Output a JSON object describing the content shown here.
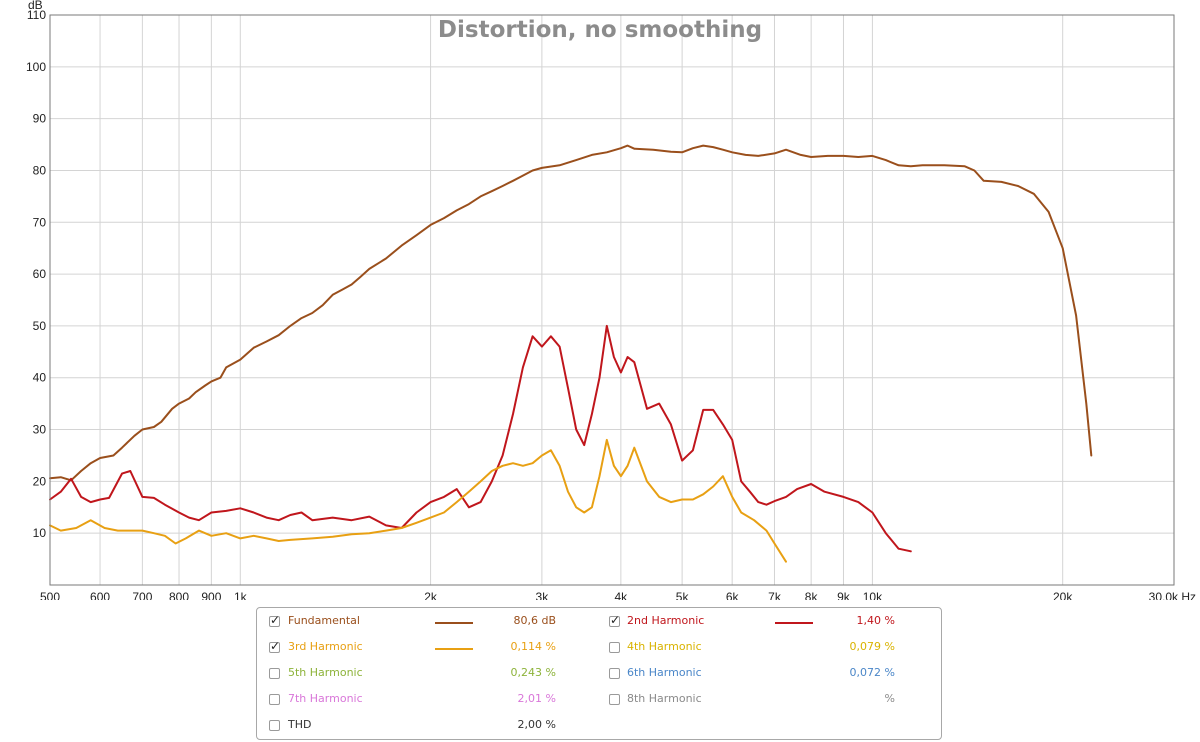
{
  "chart_data": {
    "type": "line",
    "title": "Distortion, no smoothing",
    "ylabel": "dB",
    "xunit": "Hz",
    "xscale": "log",
    "xlim": [
      500,
      30000
    ],
    "ylim": [
      0,
      110
    ],
    "grid": true,
    "x_ticks": [
      {
        "v": 500,
        "label": "500"
      },
      {
        "v": 600,
        "label": "600"
      },
      {
        "v": 700,
        "label": "700"
      },
      {
        "v": 800,
        "label": "800"
      },
      {
        "v": 900,
        "label": "900"
      },
      {
        "v": 1000,
        "label": "1k"
      },
      {
        "v": 2000,
        "label": "2k"
      },
      {
        "v": 3000,
        "label": "3k"
      },
      {
        "v": 4000,
        "label": "4k"
      },
      {
        "v": 5000,
        "label": "5k"
      },
      {
        "v": 6000,
        "label": "6k"
      },
      {
        "v": 7000,
        "label": "7k"
      },
      {
        "v": 8000,
        "label": "8k"
      },
      {
        "v": 9000,
        "label": "9k"
      },
      {
        "v": 10000,
        "label": "10k"
      },
      {
        "v": 20000,
        "label": "20k"
      },
      {
        "v": 30000,
        "label": "30,0k Hz"
      }
    ],
    "y_ticks": [
      {
        "v": 10,
        "label": "10"
      },
      {
        "v": 20,
        "label": "20"
      },
      {
        "v": 30,
        "label": "30"
      },
      {
        "v": 40,
        "label": "40"
      },
      {
        "v": 50,
        "label": "50"
      },
      {
        "v": 60,
        "label": "60"
      },
      {
        "v": 70,
        "label": "70"
      },
      {
        "v": 80,
        "label": "80"
      },
      {
        "v": 90,
        "label": "90"
      },
      {
        "v": 100,
        "label": "100"
      },
      {
        "v": 110,
        "label": "110"
      }
    ],
    "series": [
      {
        "name": "Fundamental",
        "color": "#9a4f1c",
        "points": [
          [
            500,
            20.6
          ],
          [
            520,
            20.8
          ],
          [
            540,
            20.2
          ],
          [
            560,
            22
          ],
          [
            580,
            23.5
          ],
          [
            600,
            24.5
          ],
          [
            630,
            25
          ],
          [
            650,
            26.5
          ],
          [
            680,
            28.8
          ],
          [
            700,
            30
          ],
          [
            730,
            30.5
          ],
          [
            750,
            31.5
          ],
          [
            780,
            34
          ],
          [
            800,
            35
          ],
          [
            830,
            36
          ],
          [
            850,
            37.2
          ],
          [
            880,
            38.5
          ],
          [
            900,
            39.3
          ],
          [
            930,
            40
          ],
          [
            950,
            42
          ],
          [
            1000,
            43.5
          ],
          [
            1050,
            45.8
          ],
          [
            1100,
            47
          ],
          [
            1150,
            48.2
          ],
          [
            1200,
            50
          ],
          [
            1250,
            51.5
          ],
          [
            1300,
            52.5
          ],
          [
            1350,
            54
          ],
          [
            1400,
            56
          ],
          [
            1450,
            57
          ],
          [
            1500,
            58
          ],
          [
            1550,
            59.5
          ],
          [
            1600,
            61
          ],
          [
            1700,
            63
          ],
          [
            1800,
            65.5
          ],
          [
            1900,
            67.5
          ],
          [
            2000,
            69.5
          ],
          [
            2100,
            70.8
          ],
          [
            2200,
            72.3
          ],
          [
            2300,
            73.5
          ],
          [
            2400,
            75
          ],
          [
            2500,
            76
          ],
          [
            2600,
            77
          ],
          [
            2700,
            78
          ],
          [
            2800,
            79
          ],
          [
            2900,
            80
          ],
          [
            3000,
            80.5
          ],
          [
            3200,
            81
          ],
          [
            3400,
            82
          ],
          [
            3600,
            83
          ],
          [
            3800,
            83.5
          ],
          [
            4000,
            84.3
          ],
          [
            4100,
            84.8
          ],
          [
            4200,
            84.2
          ],
          [
            4500,
            84
          ],
          [
            4800,
            83.6
          ],
          [
            5000,
            83.5
          ],
          [
            5200,
            84.3
          ],
          [
            5400,
            84.8
          ],
          [
            5600,
            84.5
          ],
          [
            5800,
            84
          ],
          [
            6000,
            83.5
          ],
          [
            6300,
            83
          ],
          [
            6600,
            82.8
          ],
          [
            7000,
            83.3
          ],
          [
            7300,
            84
          ],
          [
            7700,
            83
          ],
          [
            8000,
            82.6
          ],
          [
            8500,
            82.8
          ],
          [
            9000,
            82.8
          ],
          [
            9500,
            82.6
          ],
          [
            10000,
            82.8
          ],
          [
            10500,
            82
          ],
          [
            11000,
            81
          ],
          [
            11500,
            80.8
          ],
          [
            12000,
            81
          ],
          [
            13000,
            81
          ],
          [
            14000,
            80.8
          ],
          [
            14500,
            80
          ],
          [
            15000,
            78
          ],
          [
            16000,
            77.8
          ],
          [
            17000,
            77
          ],
          [
            18000,
            75.5
          ],
          [
            19000,
            72
          ],
          [
            20000,
            65
          ],
          [
            21000,
            52
          ],
          [
            21800,
            35
          ],
          [
            22200,
            25
          ]
        ]
      },
      {
        "name": "2nd Harmonic",
        "color": "#c0161c",
        "points": [
          [
            500,
            16.5
          ],
          [
            520,
            18
          ],
          [
            540,
            20.5
          ],
          [
            560,
            17
          ],
          [
            580,
            16
          ],
          [
            600,
            16.5
          ],
          [
            620,
            16.8
          ],
          [
            650,
            21.5
          ],
          [
            670,
            22
          ],
          [
            700,
            17
          ],
          [
            730,
            16.8
          ],
          [
            760,
            15.5
          ],
          [
            800,
            14
          ],
          [
            830,
            13
          ],
          [
            860,
            12.5
          ],
          [
            900,
            14
          ],
          [
            950,
            14.3
          ],
          [
            1000,
            14.8
          ],
          [
            1050,
            14
          ],
          [
            1100,
            13
          ],
          [
            1150,
            12.5
          ],
          [
            1200,
            13.5
          ],
          [
            1250,
            14
          ],
          [
            1300,
            12.5
          ],
          [
            1400,
            13
          ],
          [
            1500,
            12.5
          ],
          [
            1600,
            13.2
          ],
          [
            1700,
            11.5
          ],
          [
            1800,
            11
          ],
          [
            1900,
            14
          ],
          [
            2000,
            16
          ],
          [
            2100,
            17
          ],
          [
            2200,
            18.5
          ],
          [
            2300,
            15
          ],
          [
            2400,
            16
          ],
          [
            2500,
            20
          ],
          [
            2600,
            25
          ],
          [
            2700,
            33
          ],
          [
            2800,
            42
          ],
          [
            2900,
            48
          ],
          [
            3000,
            46
          ],
          [
            3100,
            48
          ],
          [
            3200,
            46
          ],
          [
            3300,
            38
          ],
          [
            3400,
            30
          ],
          [
            3500,
            27
          ],
          [
            3600,
            33
          ],
          [
            3700,
            40
          ],
          [
            3800,
            50
          ],
          [
            3900,
            44
          ],
          [
            4000,
            41
          ],
          [
            4100,
            44
          ],
          [
            4200,
            43
          ],
          [
            4400,
            34
          ],
          [
            4600,
            35
          ],
          [
            4800,
            31
          ],
          [
            5000,
            24
          ],
          [
            5200,
            26
          ],
          [
            5400,
            33.8
          ],
          [
            5600,
            33.8
          ],
          [
            5800,
            31
          ],
          [
            6000,
            28
          ],
          [
            6200,
            20
          ],
          [
            6400,
            18
          ],
          [
            6600,
            16
          ],
          [
            6800,
            15.5
          ],
          [
            7000,
            16.2
          ],
          [
            7300,
            17
          ],
          [
            7600,
            18.5
          ],
          [
            8000,
            19.5
          ],
          [
            8400,
            18
          ],
          [
            9000,
            17
          ],
          [
            9500,
            16
          ],
          [
            10000,
            14
          ],
          [
            10500,
            10
          ],
          [
            11000,
            7
          ],
          [
            11500,
            6.5
          ]
        ]
      },
      {
        "name": "3rd Harmonic",
        "color": "#e8a013",
        "points": [
          [
            500,
            11.5
          ],
          [
            520,
            10.5
          ],
          [
            550,
            11
          ],
          [
            580,
            12.5
          ],
          [
            610,
            11
          ],
          [
            640,
            10.5
          ],
          [
            670,
            10.5
          ],
          [
            700,
            10.5
          ],
          [
            730,
            10
          ],
          [
            760,
            9.5
          ],
          [
            790,
            8
          ],
          [
            820,
            9
          ],
          [
            860,
            10.5
          ],
          [
            900,
            9.5
          ],
          [
            950,
            10
          ],
          [
            1000,
            9
          ],
          [
            1050,
            9.5
          ],
          [
            1100,
            9
          ],
          [
            1150,
            8.5
          ],
          [
            1200,
            8.7
          ],
          [
            1300,
            9
          ],
          [
            1400,
            9.3
          ],
          [
            1500,
            9.8
          ],
          [
            1600,
            10
          ],
          [
            1700,
            10.5
          ],
          [
            1800,
            11
          ],
          [
            1900,
            12
          ],
          [
            2000,
            13
          ],
          [
            2100,
            14
          ],
          [
            2200,
            16
          ],
          [
            2300,
            18
          ],
          [
            2400,
            20
          ],
          [
            2500,
            22
          ],
          [
            2600,
            23
          ],
          [
            2700,
            23.5
          ],
          [
            2800,
            23
          ],
          [
            2900,
            23.5
          ],
          [
            3000,
            25
          ],
          [
            3100,
            26
          ],
          [
            3200,
            23
          ],
          [
            3300,
            18
          ],
          [
            3400,
            15
          ],
          [
            3500,
            14
          ],
          [
            3600,
            15
          ],
          [
            3700,
            21
          ],
          [
            3800,
            28
          ],
          [
            3900,
            23
          ],
          [
            4000,
            21
          ],
          [
            4100,
            23
          ],
          [
            4200,
            26.5
          ],
          [
            4400,
            20
          ],
          [
            4600,
            17
          ],
          [
            4800,
            16
          ],
          [
            5000,
            16.5
          ],
          [
            5200,
            16.5
          ],
          [
            5400,
            17.5
          ],
          [
            5600,
            19
          ],
          [
            5800,
            21
          ],
          [
            6000,
            17
          ],
          [
            6200,
            14
          ],
          [
            6500,
            12.5
          ],
          [
            6800,
            10.5
          ],
          [
            7000,
            8
          ],
          [
            7300,
            4.5
          ]
        ]
      }
    ]
  },
  "legend": {
    "items": [
      {
        "label": "Fundamental",
        "checked": true,
        "value": "80,6 dB",
        "color": "#9a4f1c",
        "show_line": true
      },
      {
        "label": "2nd Harmonic",
        "checked": true,
        "value": "1,40 %",
        "color": "#c0161c",
        "show_line": true
      },
      {
        "label": "3rd Harmonic",
        "checked": true,
        "value": "0,114 %",
        "color": "#e8a013",
        "show_line": true
      },
      {
        "label": "4th Harmonic",
        "checked": false,
        "value": "0,079 %",
        "color": "#d9b300",
        "show_line": false
      },
      {
        "label": "5th Harmonic",
        "checked": false,
        "value": "0,243 %",
        "color": "#8db33a",
        "show_line": false
      },
      {
        "label": "6th Harmonic",
        "checked": false,
        "value": "0,072 %",
        "color": "#4a86c8",
        "show_line": false
      },
      {
        "label": "7th Harmonic",
        "checked": false,
        "value": "2,01 %",
        "color": "#d977d9",
        "show_line": false
      },
      {
        "label": "8th Harmonic",
        "checked": false,
        "value": "%",
        "color": "#8a8a8a",
        "show_line": false
      },
      {
        "label": "THD",
        "checked": false,
        "value": "2,00 %",
        "color": "#333333",
        "show_line": false
      }
    ]
  }
}
